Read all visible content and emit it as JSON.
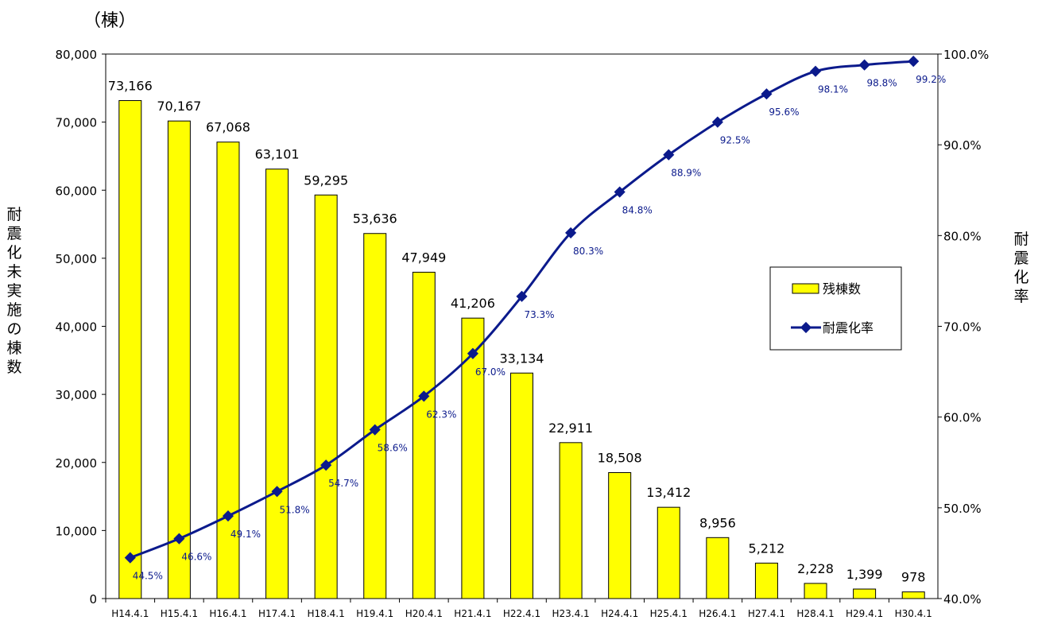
{
  "chart_data": {
    "type": "bar",
    "unit_label": "（棟）",
    "categories": [
      "H14.4.1",
      "H15.4.1",
      "H16.4.1",
      "H17.4.1",
      "H18.4.1",
      "H19.4.1",
      "H20.4.1",
      "H21.4.1",
      "H22.4.1",
      "H23.4.1",
      "H24.4.1",
      "H25.4.1",
      "H26.4.1",
      "H27.4.1",
      "H28.4.1",
      "H29.4.1",
      "H30.4.1"
    ],
    "series": [
      {
        "name": "残棟数",
        "type": "bar",
        "axis": "left",
        "color": "#ffff00",
        "values": [
          73166,
          70167,
          67068,
          63101,
          59295,
          53636,
          47949,
          41206,
          33134,
          22911,
          18508,
          13412,
          8956,
          5212,
          2228,
          1399,
          978
        ],
        "labels": [
          "73,166",
          "70,167",
          "67,068",
          "63,101",
          "59,295",
          "53,636",
          "47,949",
          "41,206",
          "33,134",
          "22,911",
          "18,508",
          "13,412",
          "8,956",
          "5,212",
          "2,228",
          "1,399",
          "978"
        ]
      },
      {
        "name": "耐震化率",
        "type": "line",
        "axis": "right",
        "color": "#0b1a8c",
        "values": [
          44.5,
          46.6,
          49.1,
          51.8,
          54.7,
          58.6,
          62.3,
          67.0,
          73.3,
          80.3,
          84.8,
          88.9,
          92.5,
          95.6,
          98.1,
          98.8,
          99.2
        ],
        "labels": [
          "44.5%",
          "46.6%",
          "49.1%",
          "51.8%",
          "54.7%",
          "58.6%",
          "62.3%",
          "67.0%",
          "73.3%",
          "80.3%",
          "84.8%",
          "88.9%",
          "92.5%",
          "95.6%",
          "98.1%",
          "98.8%",
          "99.2%"
        ]
      }
    ],
    "ylabel": "耐震化未実施の棟数",
    "y2label": "耐震化率",
    "ylim": [
      0,
      80000
    ],
    "y2lim": [
      40,
      100
    ],
    "yticks": [
      "0",
      "10,000",
      "20,000",
      "30,000",
      "40,000",
      "50,000",
      "60,000",
      "70,000",
      "80,000"
    ],
    "y2ticks": [
      "40.0%",
      "50.0%",
      "60.0%",
      "70.0%",
      "80.0%",
      "90.0%",
      "100.0%"
    ],
    "grid": false,
    "legend": "right"
  }
}
